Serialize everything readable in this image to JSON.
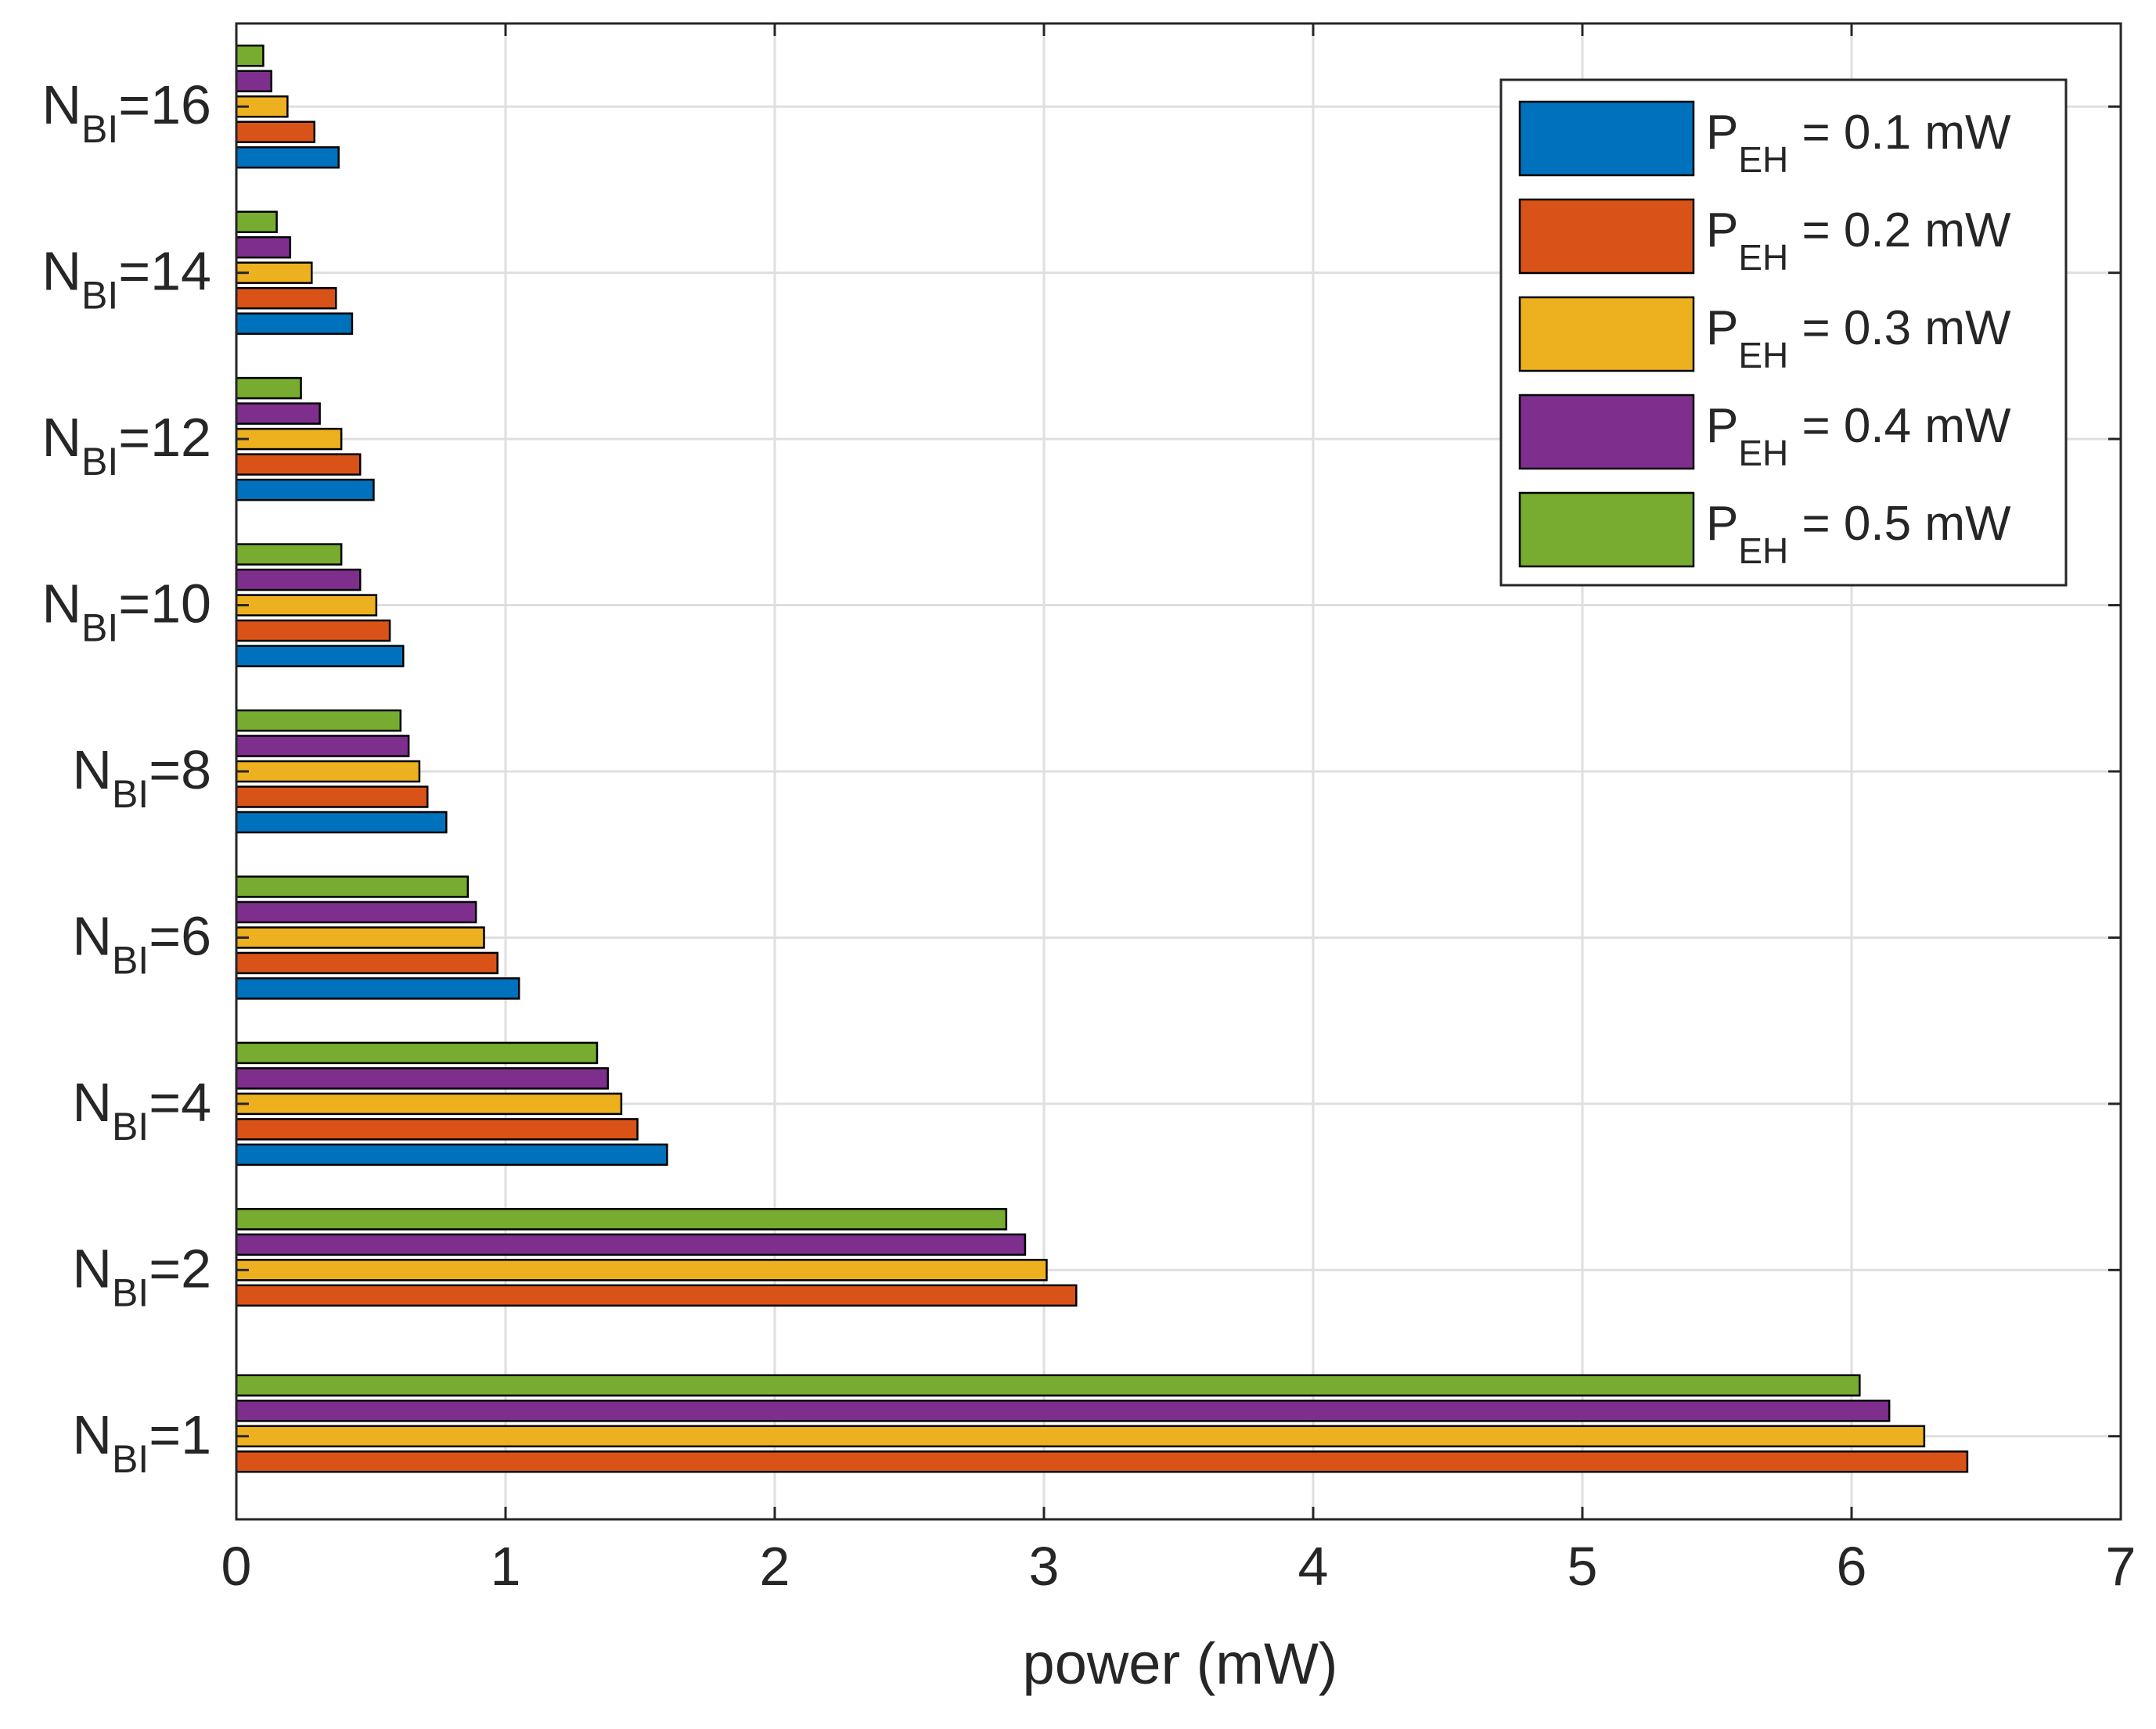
{
  "chart_data": {
    "type": "bar",
    "orientation": "horizontal",
    "title": "",
    "xlabel": "power (mW)",
    "ylabel": "",
    "xlim": [
      0,
      7
    ],
    "xticks": [
      "0",
      "1",
      "2",
      "3",
      "4",
      "5",
      "6",
      "7"
    ],
    "grid": true,
    "legend_position": "top-right",
    "categories": [
      {
        "prefix": "N",
        "sub": "BI",
        "suffix": "=1"
      },
      {
        "prefix": "N",
        "sub": "BI",
        "suffix": "=2"
      },
      {
        "prefix": "N",
        "sub": "BI",
        "suffix": "=4"
      },
      {
        "prefix": "N",
        "sub": "BI",
        "suffix": "=6"
      },
      {
        "prefix": "N",
        "sub": "BI",
        "suffix": "=8"
      },
      {
        "prefix": "N",
        "sub": "BI",
        "suffix": "=10"
      },
      {
        "prefix": "N",
        "sub": "BI",
        "suffix": "=12"
      },
      {
        "prefix": "N",
        "sub": "BI",
        "suffix": "=14"
      },
      {
        "prefix": "N",
        "sub": "BI",
        "suffix": "=16"
      }
    ],
    "series": [
      {
        "name": "P_EH = 0.1 mW",
        "label_main": "P",
        "label_sub": "EH",
        "label_rest": " = 0.1 mW",
        "color": "#0072BD",
        "values": [
          0,
          0,
          1.6,
          1.05,
          0.78,
          0.62,
          0.51,
          0.43,
          0.38
        ]
      },
      {
        "name": "P_EH = 0.2 mW",
        "label_main": "P",
        "label_sub": "EH",
        "label_rest": " = 0.2 mW",
        "color": "#D95319",
        "values": [
          6.43,
          3.12,
          1.49,
          0.97,
          0.71,
          0.57,
          0.46,
          0.37,
          0.29
        ]
      },
      {
        "name": "P_EH = 0.3 mW",
        "label_main": "P",
        "label_sub": "EH",
        "label_rest": " = 0.3 mW",
        "color": "#EDB120",
        "values": [
          6.27,
          3.01,
          1.43,
          0.92,
          0.68,
          0.52,
          0.39,
          0.28,
          0.19
        ]
      },
      {
        "name": "P_EH = 0.4 mW",
        "label_main": "P",
        "label_sub": "EH",
        "label_rest": " = 0.4 mW",
        "color": "#7E2F8E",
        "values": [
          6.14,
          2.93,
          1.38,
          0.89,
          0.64,
          0.46,
          0.31,
          0.2,
          0.13
        ]
      },
      {
        "name": "P_EH = 0.5 mW",
        "label_main": "P",
        "label_sub": "EH",
        "label_rest": " = 0.5 mW",
        "color": "#77AC30",
        "values": [
          6.03,
          2.86,
          1.34,
          0.86,
          0.61,
          0.39,
          0.24,
          0.15,
          0.1
        ]
      }
    ]
  }
}
